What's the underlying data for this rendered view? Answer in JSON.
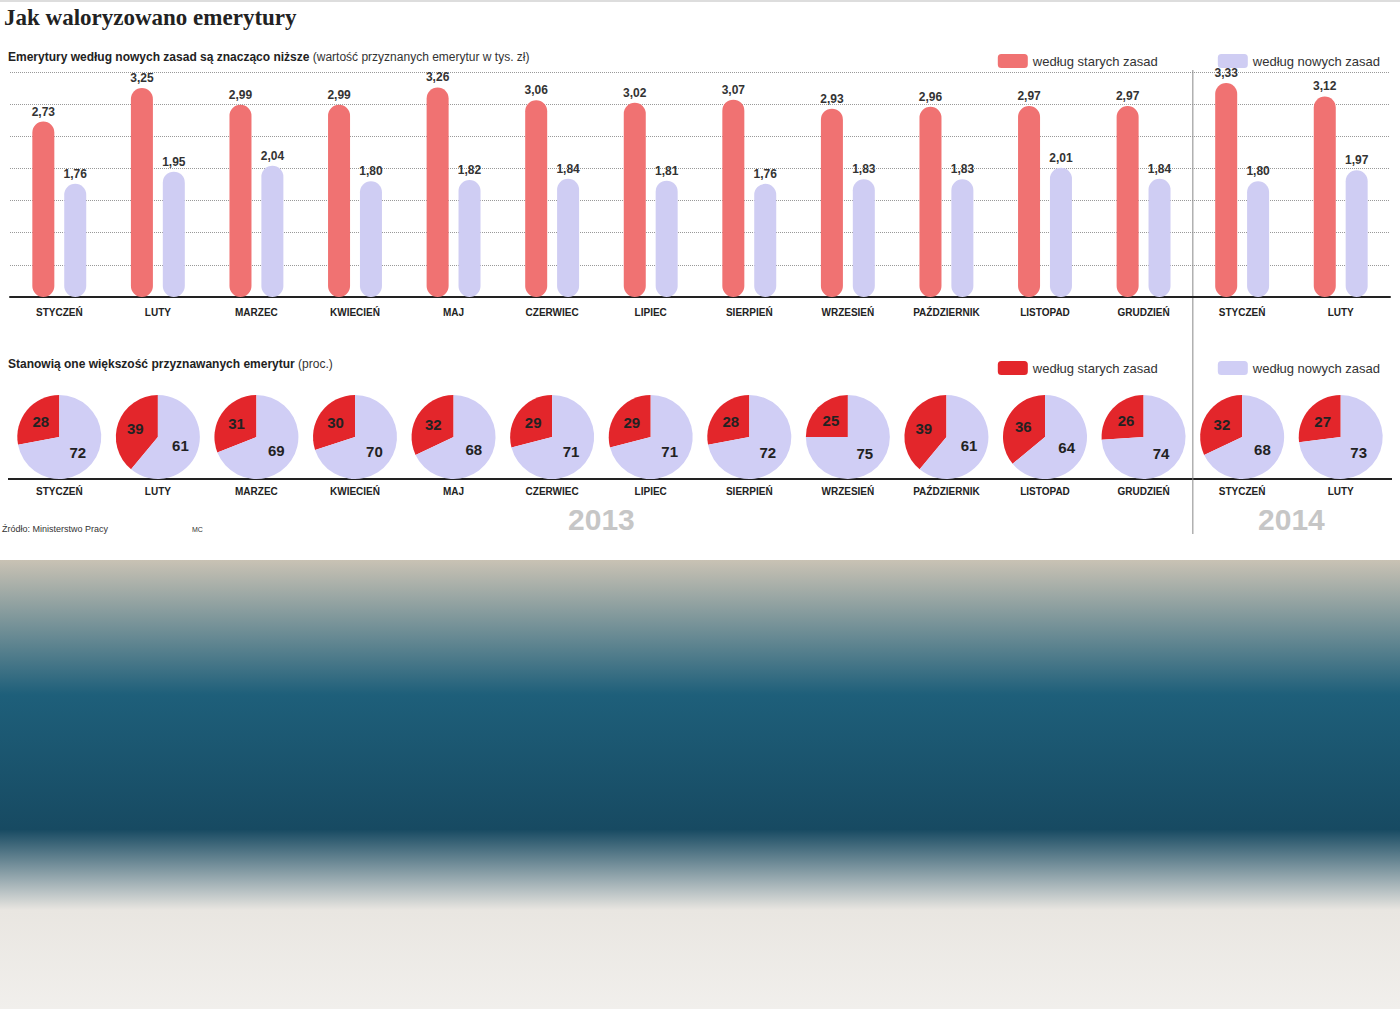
{
  "title": "Jak waloryzowano emerytury",
  "source": "Źródło: Ministerstwo Pracy",
  "credit": "MC",
  "category_groups": [
    {
      "label": "2013",
      "count": 12
    },
    {
      "label": "2014",
      "count": 2
    }
  ],
  "chart_data": [
    {
      "type": "bar",
      "title": "Emerytury według nowych zasad są znacząco niższe",
      "subtitle": "(wartość przyznanych emerytur w tys. zł)",
      "categories": [
        "STYCZEŃ",
        "LUTY",
        "MARZEC",
        "KWIECIEŃ",
        "MAJ",
        "CZERWIEC",
        "LIPIEC",
        "SIERPIEŃ",
        "WRZESIEŃ",
        "PAŹDZIERNIK",
        "LISTOPAD",
        "GRUDZIEŃ",
        "STYCZEŃ",
        "LUTY"
      ],
      "series": [
        {
          "name": "według starych zasad",
          "color": "#f07272",
          "values": [
            2.73,
            3.25,
            2.99,
            2.99,
            3.26,
            3.06,
            3.02,
            3.07,
            2.93,
            2.96,
            2.97,
            2.97,
            3.33,
            3.12
          ],
          "value_labels": [
            "2,73",
            "3,25",
            "2,99",
            "2,99",
            "3,26",
            "3,06",
            "3,02",
            "3,07",
            "2,93",
            "2,96",
            "2,97",
            "2,97",
            "3,33",
            "3,12"
          ]
        },
        {
          "name": "według nowych zasad",
          "color": "#cfcdf3",
          "values": [
            1.76,
            1.95,
            2.04,
            1.8,
            1.82,
            1.84,
            1.81,
            1.76,
            1.83,
            1.83,
            2.01,
            1.84,
            1.8,
            1.97
          ],
          "value_labels": [
            "1,76",
            "1,95",
            "2,04",
            "1,80",
            "1,82",
            "1,84",
            "1,81",
            "1,76",
            "1,83",
            "1,83",
            "2,01",
            "1,84",
            "1,80",
            "1,97"
          ]
        }
      ],
      "ylim": [
        0,
        3.5
      ],
      "yticks": [
        0,
        0.5,
        1,
        1.5,
        2,
        2.5,
        3,
        3.5
      ],
      "grid": true,
      "tick_labels": "x",
      "data_labels": true,
      "legend": "upper right"
    },
    {
      "type": "pie",
      "title": "Stanowią one większość przyznawanych emerytur",
      "subtitle": "(proc.)",
      "categories": [
        "STYCZEŃ",
        "LUTY",
        "MARZEC",
        "KWIECIEŃ",
        "MAJ",
        "CZERWIEC",
        "LIPIEC",
        "SIERPIEŃ",
        "WRZESIEŃ",
        "PAŹDZIERNIK",
        "LISTOPAD",
        "GRUDZIEŃ",
        "STYCZEŃ",
        "LUTY"
      ],
      "series": [
        {
          "name": "według starych zasad",
          "color": "#e3262b",
          "values": [
            28,
            39,
            31,
            30,
            32,
            29,
            29,
            28,
            25,
            39,
            36,
            26,
            32,
            27
          ]
        },
        {
          "name": "według nowych zasad",
          "color": "#d0cef5",
          "values": [
            72,
            61,
            69,
            70,
            68,
            71,
            71,
            72,
            75,
            61,
            64,
            74,
            68,
            73
          ]
        }
      ],
      "data_labels": true,
      "legend": "upper right"
    }
  ]
}
